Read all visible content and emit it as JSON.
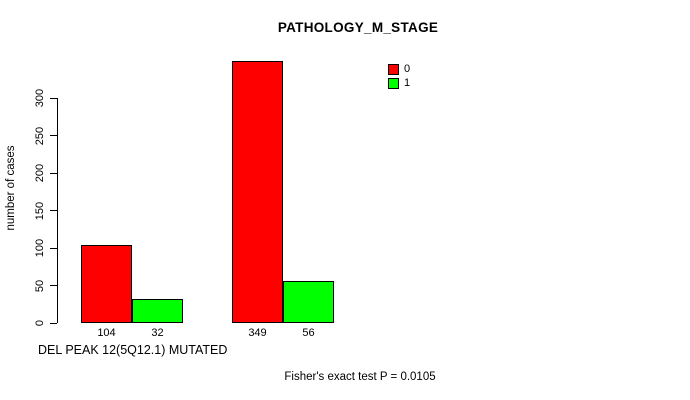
{
  "chart_data": {
    "type": "bar",
    "title": "PATHOLOGY_M_STAGE",
    "ylabel": "number of cases",
    "xlabel": "DEL PEAK 12(5Q12.1) MUTATED",
    "note": "Fisher's exact test P = 0.0105",
    "ylim": [
      0,
      300
    ],
    "yticks": [
      0,
      50,
      100,
      150,
      200,
      250,
      300
    ],
    "grid": false,
    "legend_position": "top-right-inside",
    "series": [
      {
        "name": "0",
        "color": "#ff0000",
        "values": [
          104,
          349
        ]
      },
      {
        "name": "1",
        "color": "#00ff00",
        "values": [
          32,
          56
        ]
      }
    ],
    "bar_value_labels": [
      [
        "104",
        "32"
      ],
      [
        "349",
        "56"
      ]
    ],
    "legend": [
      {
        "label": "0",
        "color": "#ff0000"
      },
      {
        "label": "1",
        "color": "#00ff00"
      }
    ],
    "colors": {
      "background": "#ffffff",
      "bar_border": "#000000",
      "axis": "#000000",
      "text": "#000000"
    }
  }
}
